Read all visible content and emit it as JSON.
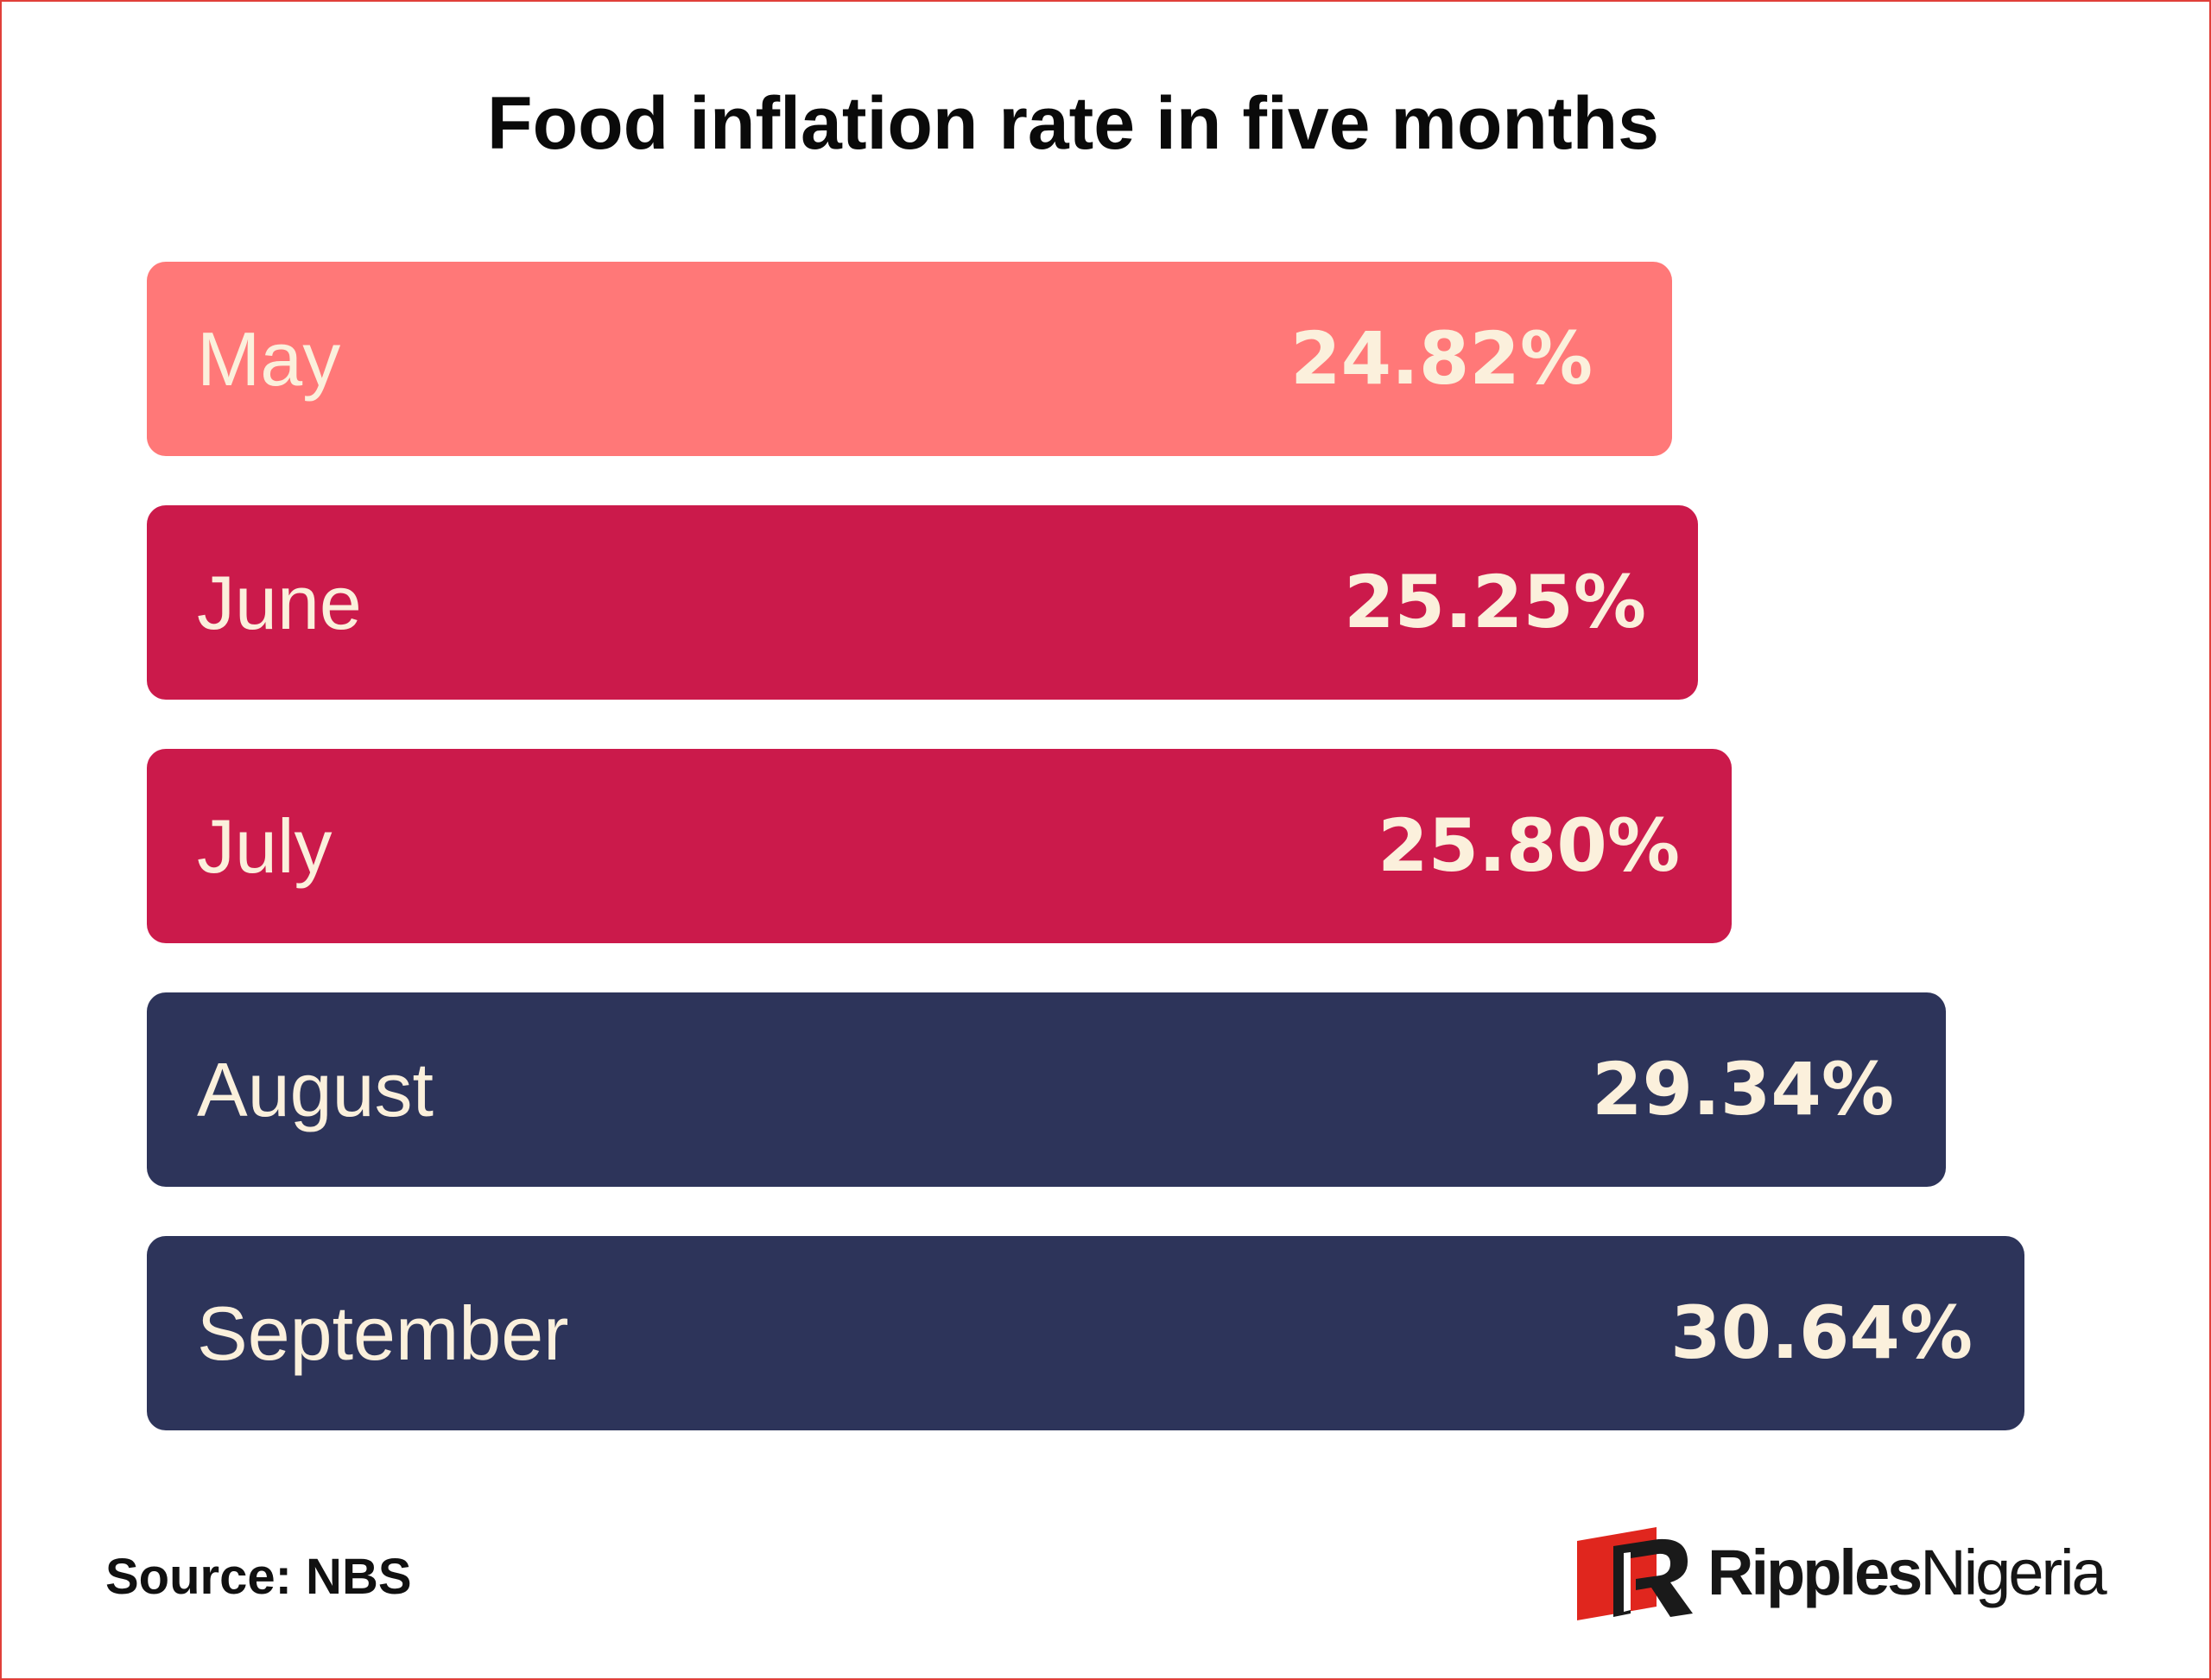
{
  "chart_data": {
    "type": "bar",
    "orientation": "horizontal",
    "title": "Food inflation rate in five months",
    "categories": [
      "May",
      "June",
      "July",
      "August",
      "September"
    ],
    "values": [
      24.82,
      25.25,
      25.8,
      29.34,
      30.64
    ],
    "value_labels": [
      "24.82%",
      "25.25%",
      "25.80%",
      "29.34%",
      "30.64%"
    ],
    "colors": [
      "#ff7878",
      "#cb1a4b",
      "#cb1a4b",
      "#2d345a",
      "#2d345a"
    ],
    "label_color": "#fbf0dc"
  },
  "footer": {
    "source": "Source: NBS"
  },
  "brand": {
    "name_bold": "Ripples",
    "name_light": "Nigeria",
    "mark_color": "#e0261e",
    "mark_dark": "#1a1a1a"
  }
}
